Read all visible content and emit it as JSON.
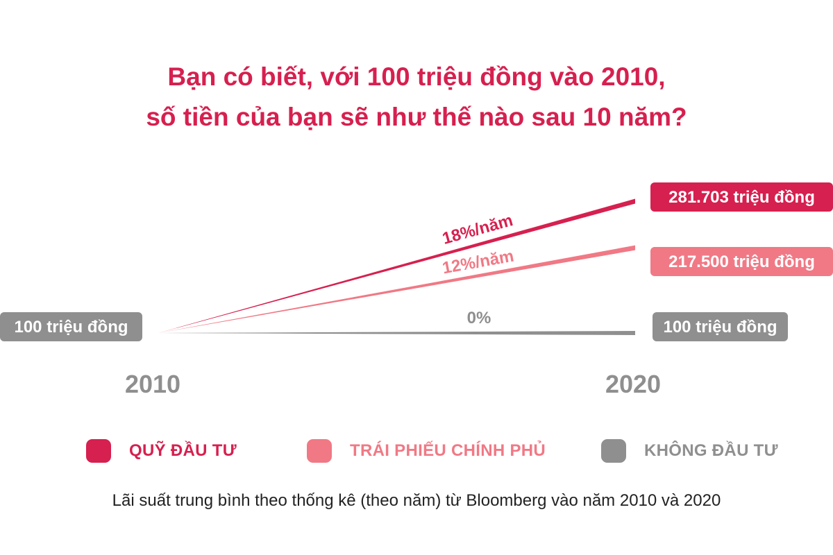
{
  "title": {
    "line1": "Bạn có biết, với 100 triệu đồng vào 2010,",
    "line2": "số tiền của bạn sẽ như thế nào sau 10 năm?"
  },
  "colors": {
    "fund": "#d6204f",
    "bond": "#f07985",
    "none": "#8f8f8f",
    "axis_text": "#8f8f8f",
    "title": "#d6204f"
  },
  "chart_data": {
    "type": "line",
    "title": "Bạn có biết, với 100 triệu đồng vào 2010, số tiền của bạn sẽ như thế nào sau 10 năm?",
    "x": [
      "2010",
      "2020"
    ],
    "start_label": "100 triệu đồng",
    "series": [
      {
        "name": "QUỸ ĐẦU TƯ",
        "rate_label": "18%/năm",
        "values": [
          100,
          281.703
        ],
        "end_label": "281.703 triệu đồng",
        "color": "#d6204f"
      },
      {
        "name": "TRÁI PHIẾU CHÍNH PHỦ",
        "rate_label": "12%/năm",
        "values": [
          100,
          217.5
        ],
        "end_label": "217.500 triệu đồng",
        "color": "#f07985"
      },
      {
        "name": "KHÔNG ĐẦU TƯ",
        "rate_label": "0%",
        "values": [
          100,
          100
        ],
        "end_label": "100 triệu đồng",
        "color": "#8f8f8f"
      }
    ],
    "legend_position": "bottom",
    "grid": false
  },
  "legend": [
    {
      "label": "QUỸ ĐẦU TƯ",
      "color": "#d6204f"
    },
    {
      "label": "TRÁI PHIẾU CHÍNH PHỦ",
      "color": "#f07985"
    },
    {
      "label": "KHÔNG ĐẦU TƯ",
      "color": "#8f8f8f"
    }
  ],
  "footnote": "Lãi suất trung bình theo thống kê (theo năm) từ Bloomberg vào năm 2010 và 2020"
}
